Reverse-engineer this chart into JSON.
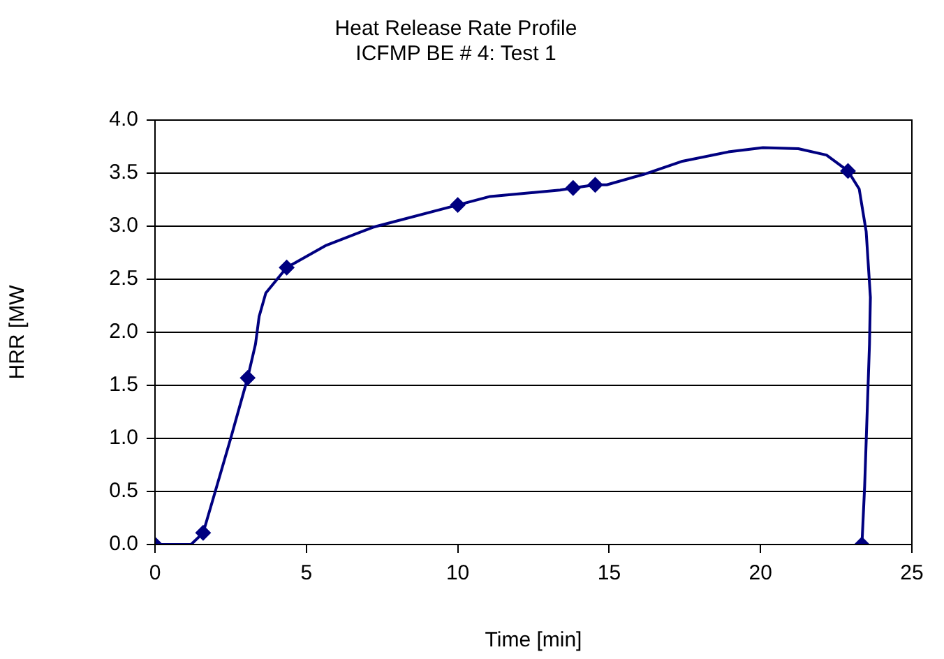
{
  "chart_data": {
    "type": "line",
    "title": "Heat Release Rate Profile\nICFMP BE # 4: Test 1",
    "xlabel": "Time [min]",
    "ylabel": "HRR [MW",
    "xlim": [
      0,
      25
    ],
    "xticks": [
      0,
      5,
      10,
      15,
      20,
      25
    ],
    "ylim": [
      0,
      4
    ],
    "yticks": [
      {
        "value": 0,
        "label": "0.0"
      },
      0.5,
      {
        "value": 1,
        "label": "1.0"
      },
      1.5,
      {
        "value": 2,
        "label": "2.0"
      },
      2.5,
      {
        "value": 3,
        "label": "3.0"
      },
      3.5,
      {
        "value": 4,
        "label": "4.0"
      }
    ],
    "grid": "y",
    "legend": false,
    "line_style": "solid",
    "series": [
      {
        "type": "line",
        "color": "#000080",
        "marker": "none",
        "x": [
          0,
          1.19,
          1.59,
          1.96,
          2.5,
          3.06,
          3.32,
          3.44,
          3.66,
          4.35,
          5.66,
          7.2,
          10.0,
          11.07,
          13.38,
          13.81,
          14.54,
          14.92,
          16.16,
          17.39,
          18.94,
          20.08,
          21.25,
          22.18,
          22.89,
          23.26,
          23.49,
          23.63,
          23.6,
          23.44,
          23.35
        ],
        "values": [
          0,
          0,
          0.11,
          0.47,
          1.0,
          1.57,
          1.89,
          2.15,
          2.37,
          2.61,
          2.82,
          2.99,
          3.2,
          3.28,
          3.34,
          3.36,
          3.39,
          3.39,
          3.49,
          3.61,
          3.7,
          3.74,
          3.73,
          3.67,
          3.52,
          3.35,
          2.95,
          2.33,
          1.89,
          0.55,
          0
        ]
      },
      {
        "type": "scatter",
        "color": "#000080",
        "marker": "diamond",
        "x": [
          0,
          1.59,
          3.06,
          4.35,
          10.0,
          13.81,
          14.54,
          22.89,
          23.35
        ],
        "values": [
          0,
          0.11,
          1.57,
          2.61,
          3.2,
          3.36,
          3.39,
          3.52,
          0
        ]
      }
    ]
  }
}
